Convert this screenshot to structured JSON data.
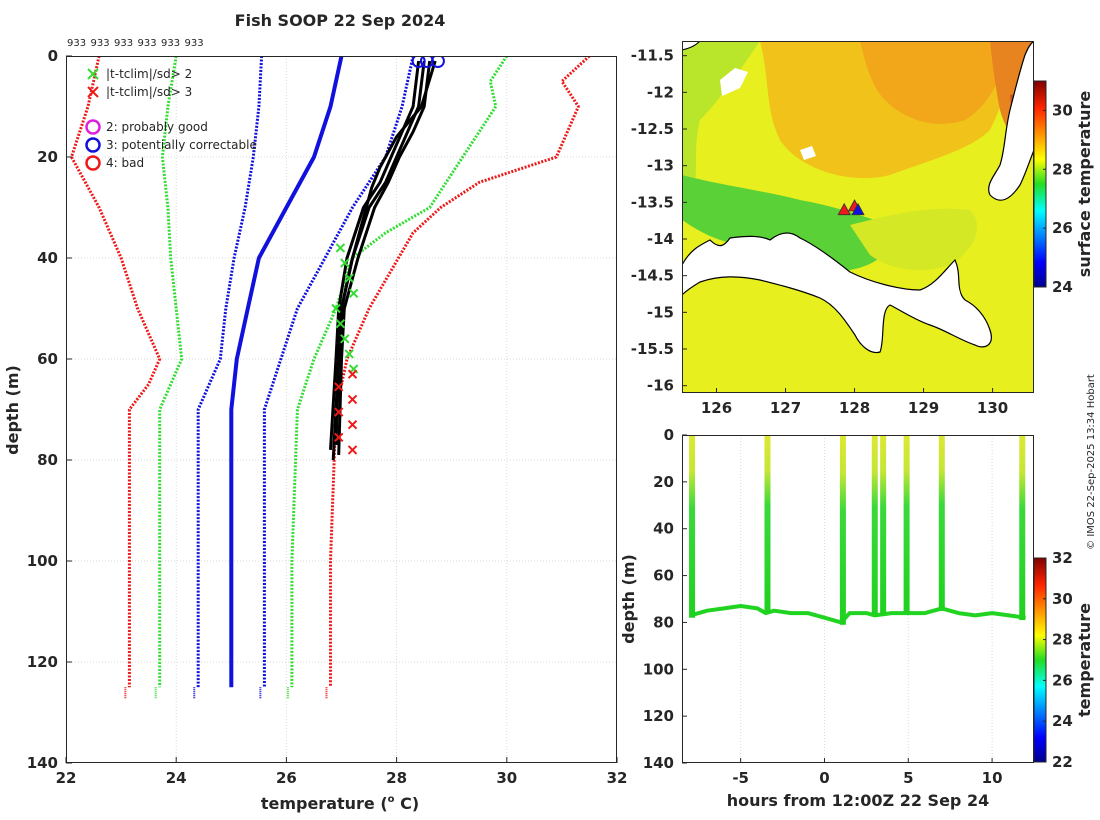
{
  "colors": {
    "green": "#33dd33",
    "red": "#ee1a1a",
    "blue": "#1111dd",
    "black": "#000000",
    "magenta": "#dd22dd"
  },
  "chart_data": [
    {
      "type": "line",
      "id": "profile",
      "title": "Fish SOOP 22 Sep 2024",
      "top_labels": [
        "933",
        "933",
        "933",
        "933",
        "933",
        "933"
      ],
      "xlabel": "temperature (",
      "xlabel_sup": "o",
      "xlabel_end": " C)",
      "ylabel": "depth (m)",
      "xlim": [
        22,
        32
      ],
      "ylim": [
        0,
        140
      ],
      "y_reversed": true,
      "x_ticks": [
        22,
        24,
        26,
        28,
        30,
        32
      ],
      "y_ticks": [
        0,
        20,
        40,
        60,
        80,
        100,
        120,
        140
      ],
      "legend": {
        "placement": "top-left",
        "markers": [
          {
            "label": "|t-tclim|/sd> 2",
            "color": "#33dd33",
            "symbol": "x"
          },
          {
            "label": "|t-tclim|/sd> 3",
            "color": "#ee1a1a",
            "symbol": "x"
          }
        ],
        "flags": [
          {
            "label": "2: probably good",
            "color": "#dd22dd"
          },
          {
            "label": "3: potentially correctable",
            "color": "#1111dd"
          },
          {
            "label": "4: bad",
            "color": "#ee1a1a"
          }
        ]
      },
      "series": [
        {
          "name": "climatology mean",
          "color": "#1111dd",
          "style": "solid",
          "width": 4,
          "x": [
            27.0,
            26.8,
            26.5,
            26.0,
            25.5,
            25.3,
            25.1,
            25.0,
            25.0,
            25.0
          ],
          "y": [
            0,
            10,
            20,
            30,
            40,
            50,
            60,
            70,
            100,
            125
          ]
        },
        {
          "name": "mean -1sd",
          "color": "#1111dd",
          "style": "dotted",
          "width": 3,
          "x": [
            25.55,
            25.5,
            25.4,
            25.25,
            25.05,
            24.9,
            24.8,
            24.4,
            24.4,
            24.4
          ],
          "y": [
            0,
            10,
            20,
            30,
            40,
            50,
            60,
            70,
            100,
            125
          ]
        },
        {
          "name": "mean +1sd",
          "color": "#1111dd",
          "style": "dotted",
          "width": 3,
          "x": [
            28.3,
            28.1,
            27.8,
            27.2,
            26.7,
            26.2,
            25.9,
            25.6,
            25.6,
            25.6
          ],
          "y": [
            0,
            10,
            20,
            30,
            40,
            50,
            60,
            70,
            100,
            125
          ]
        },
        {
          "name": "mean -2sd",
          "color": "#33dd33",
          "style": "dotted",
          "width": 3,
          "x": [
            24.0,
            23.85,
            23.75,
            23.85,
            23.9,
            24.0,
            24.1,
            23.7,
            23.7,
            23.7
          ],
          "y": [
            0,
            10,
            20,
            30,
            40,
            50,
            60,
            70,
            100,
            125
          ]
        },
        {
          "name": "mean +2sd",
          "color": "#33dd33",
          "style": "dotted",
          "width": 3,
          "x": [
            30.0,
            29.7,
            29.8,
            29.2,
            28.6,
            27.8,
            27.2,
            26.9,
            26.5,
            26.2,
            26.1,
            26.1
          ],
          "y": [
            0,
            5,
            10,
            20,
            30,
            35,
            40,
            50,
            60,
            70,
            100,
            125
          ]
        },
        {
          "name": "mean -3sd",
          "color": "#ee1a1a",
          "style": "dotted",
          "width": 3,
          "x": [
            22.6,
            22.4,
            22.1,
            22.6,
            23.0,
            23.3,
            23.7,
            23.5,
            23.15,
            23.15,
            23.15
          ],
          "y": [
            0,
            10,
            20,
            30,
            40,
            50,
            60,
            65,
            70,
            100,
            125
          ]
        },
        {
          "name": "mean +3sd",
          "color": "#ee1a1a",
          "style": "dotted",
          "width": 3,
          "x": [
            31.5,
            31.0,
            31.3,
            30.9,
            29.5,
            28.8,
            28.3,
            27.5,
            27.1,
            26.9,
            26.8,
            26.8
          ],
          "y": [
            0,
            5,
            10,
            20,
            25,
            30,
            35,
            50,
            60,
            70,
            100,
            125
          ]
        },
        {
          "name": "profile 1",
          "color": "#000000",
          "style": "solid",
          "width": 3,
          "x": [
            28.4,
            28.3,
            28.1,
            27.9,
            27.7,
            27.4,
            27.1,
            26.95,
            26.9,
            26.8
          ],
          "y": [
            1,
            10,
            15,
            20,
            25,
            30,
            40,
            50,
            60,
            78
          ]
        },
        {
          "name": "profile 2",
          "color": "#000000",
          "style": "solid",
          "width": 3,
          "x": [
            28.5,
            28.4,
            28.2,
            28.0,
            27.8,
            27.5,
            27.2,
            27.0,
            26.95,
            26.85
          ],
          "y": [
            1,
            10,
            15,
            20,
            25,
            30,
            40,
            50,
            60,
            80
          ]
        },
        {
          "name": "profile 3",
          "color": "#000000",
          "style": "solid",
          "width": 3,
          "x": [
            28.6,
            28.5,
            28.3,
            28.05,
            27.85,
            27.6,
            27.3,
            27.05,
            27.0,
            26.95
          ],
          "y": [
            1,
            10,
            15,
            20,
            25,
            30,
            40,
            50,
            60,
            79
          ]
        },
        {
          "name": "profile 4",
          "color": "#000000",
          "style": "solid",
          "width": 3,
          "x": [
            28.7,
            28.45,
            28.0,
            27.7,
            27.55,
            27.45,
            27.2,
            27.0,
            26.95,
            26.9
          ],
          "y": [
            1,
            10,
            16,
            22,
            26,
            30,
            40,
            50,
            60,
            77
          ]
        }
      ],
      "flag_circles": [
        {
          "x": 28.4,
          "y": 1,
          "color": "#1111dd"
        },
        {
          "x": 28.55,
          "y": 1,
          "color": "#1111dd"
        },
        {
          "x": 28.75,
          "y": 1,
          "color": "#1111dd"
        }
      ]
    },
    {
      "type": "heatmap",
      "id": "map",
      "xlim": [
        125.5,
        130.6
      ],
      "ylim": [
        -16.1,
        -11.3
      ],
      "x_ticks": [
        126,
        127,
        128,
        129,
        130
      ],
      "y_ticks": [
        -11.5,
        -12,
        -12.5,
        -13,
        -13.5,
        -14,
        -14.5,
        -15,
        -15.5,
        -16
      ],
      "colorbar": {
        "label": "surface temperature",
        "range": [
          24,
          31
        ],
        "ticks": [
          24,
          26,
          28,
          30
        ]
      },
      "markers": [
        {
          "x": 127.85,
          "y": -13.6,
          "color": "#ee1a1a"
        },
        {
          "x": 128.0,
          "y": -13.55,
          "color": "#ee1a1a"
        },
        {
          "x": 128.05,
          "y": -13.6,
          "color": "#1111dd"
        }
      ]
    },
    {
      "type": "scatter",
      "id": "timeseries",
      "xlabel": "hours from 12:00Z 22 Sep 24",
      "ylabel": "depth (m)",
      "xlim": [
        -8.5,
        12.5
      ],
      "ylim": [
        0,
        140
      ],
      "y_reversed": true,
      "x_ticks": [
        -5,
        0,
        5,
        10
      ],
      "y_ticks": [
        0,
        20,
        40,
        60,
        80,
        100,
        120,
        140
      ],
      "colorbar": {
        "label": "temperature",
        "range": [
          22,
          32
        ],
        "ticks": [
          22,
          24,
          26,
          28,
          30,
          32
        ]
      },
      "casts": [
        {
          "time": -7.9,
          "depth": 78
        },
        {
          "time": -3.4,
          "depth": 76
        },
        {
          "time": 1.1,
          "depth": 81
        },
        {
          "time": 3.0,
          "depth": 77
        },
        {
          "time": 3.5,
          "depth": 77
        },
        {
          "time": 4.9,
          "depth": 76
        },
        {
          "time": 7.0,
          "depth": 74
        },
        {
          "time": 11.8,
          "depth": 79
        }
      ],
      "bottom_path": {
        "time": [
          -8.0,
          -7.0,
          -6.0,
          -5.0,
          -4.0,
          -3.5,
          -3.0,
          -2.0,
          -1.0,
          0.0,
          1.0,
          1.5,
          2.5,
          3.0,
          4.0,
          5.0,
          6.0,
          7.0,
          8.0,
          9.0,
          10.0,
          11.0,
          12.0
        ],
        "depth": [
          77,
          75,
          74,
          73,
          74,
          76,
          75,
          76,
          76,
          78,
          80,
          76,
          76,
          77,
          76,
          76,
          76,
          74,
          76,
          77,
          76,
          77,
          78
        ]
      }
    }
  ],
  "footer": {
    "watermark": "© IMOS 22-Sep-2025 13:34 Hobart"
  }
}
